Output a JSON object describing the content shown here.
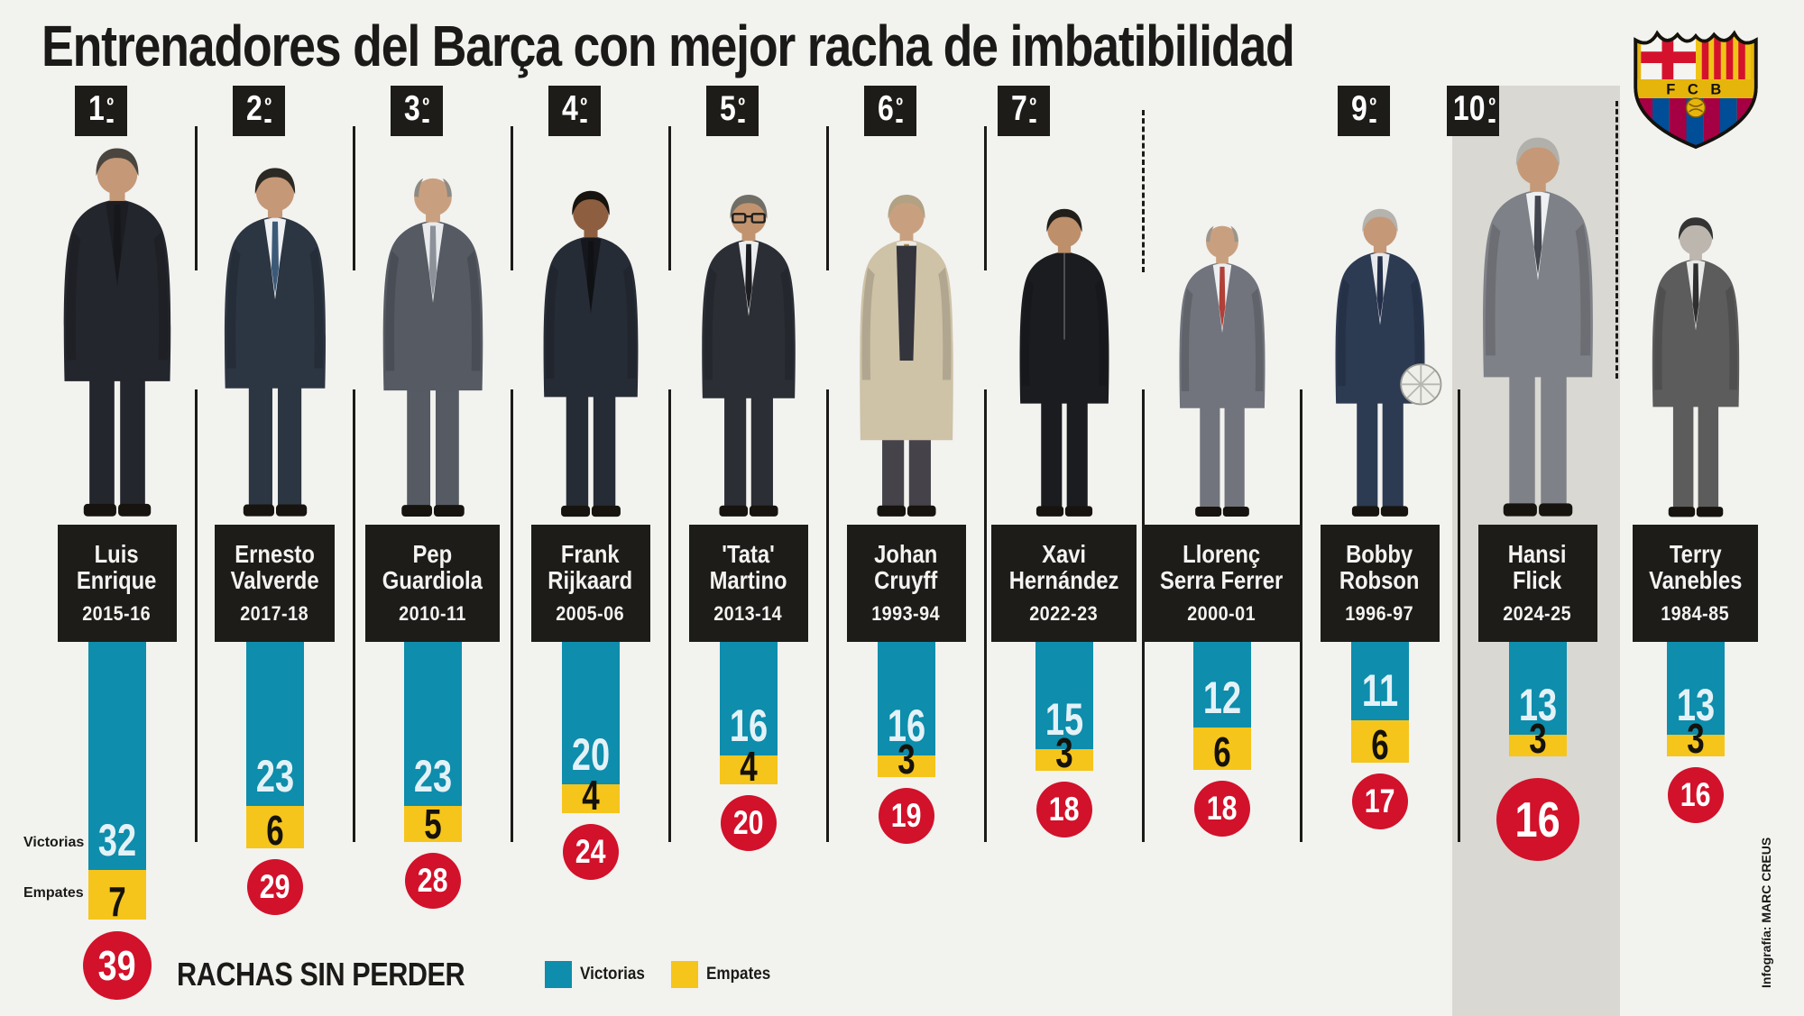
{
  "title": "Entrenadores del Barça con mejor racha de imbatibilidad",
  "crest_text": "F C B",
  "side_labels": {
    "victorias": "Victorias",
    "empates": "Empates"
  },
  "legend": {
    "title": "RACHAS SIN PERDER",
    "victorias": "Victorias",
    "empates": "Empates"
  },
  "credit": "Infografía: MARC CREUS",
  "colors": {
    "wins": "#0e8dac",
    "draws": "#f5c51b",
    "totals": "#d2112a",
    "background": "#f2f2ef",
    "panel": "#1d1c19",
    "highlight_band": "#d9d8d2",
    "text": "#1b1a18"
  },
  "chart_data": {
    "type": "bar",
    "stacked": true,
    "direction": "top-down",
    "title": "Entrenadores del Barça con mejor racha de imbatibilidad",
    "legend": [
      "Victorias",
      "Empates"
    ],
    "legend_position": "bottom",
    "categories": [
      "Luis Enrique",
      "Ernesto Valverde",
      "Pep Guardiola",
      "Frank Rijkaard",
      "'Tata' Martino",
      "Johan Cruyff",
      "Xavi Hernández",
      "Llorenç Serra Ferrer",
      "Bobby Robson",
      "Hansi Flick",
      "Terry Vanebles"
    ],
    "series": [
      {
        "name": "Victorias",
        "values": [
          32,
          23,
          23,
          20,
          16,
          16,
          15,
          12,
          11,
          13,
          13
        ]
      },
      {
        "name": "Empates",
        "values": [
          7,
          6,
          5,
          4,
          4,
          3,
          3,
          6,
          6,
          3,
          3
        ]
      }
    ],
    "totals": [
      39,
      29,
      28,
      24,
      20,
      19,
      18,
      18,
      17,
      16,
      16
    ],
    "coaches": [
      {
        "rank": "1º",
        "name_lines": [
          "Luis",
          "Enrique"
        ],
        "season": "2015-16",
        "wins": 32,
        "draws": 7,
        "total": 39,
        "emphasis": "first",
        "highlighted": false,
        "figure": {
          "suit": "#23262c",
          "shirt": "#1b1d22",
          "tie": "#16171b",
          "hair": "#4a463f",
          "skin": "#c59877"
        }
      },
      {
        "rank": "2º",
        "name_lines": [
          "Ernesto",
          "Valverde"
        ],
        "season": "2017-18",
        "wins": 23,
        "draws": 6,
        "total": 29,
        "emphasis": "normal",
        "highlighted": false,
        "figure": {
          "suit": "#2c3642",
          "shirt": "#eef0f2",
          "tie": "#3c5a78",
          "hair": "#2c2924",
          "skin": "#c59877"
        }
      },
      {
        "rank": "3º",
        "name_lines": [
          "Pep",
          "Guardiola"
        ],
        "season": "2010-11",
        "wins": 23,
        "draws": 5,
        "total": 28,
        "emphasis": "normal",
        "highlighted": false,
        "figure": {
          "suit": "#555a63",
          "shirt": "#e8eaec",
          "tie": "#8c9099",
          "hair": "#8d8a83",
          "skin": "#c9a07f",
          "bald": true
        }
      },
      {
        "rank": "4º",
        "name_lines": [
          "Frank",
          "Rijkaard"
        ],
        "season": "2005-06",
        "wins": 20,
        "draws": 4,
        "total": 24,
        "emphasis": "normal",
        "highlighted": false,
        "figure": {
          "suit": "#262c36",
          "shirt": "#15171c",
          "tie": "#101114",
          "hair": "#17130e",
          "skin": "#8d5f40"
        }
      },
      {
        "rank": "5º",
        "name_lines": [
          "'Tata'",
          "Martino"
        ],
        "season": "2013-14",
        "wins": 16,
        "draws": 4,
        "total": 20,
        "emphasis": "normal",
        "highlighted": false,
        "figure": {
          "suit": "#2b2e35",
          "shirt": "#ecedef",
          "tie": "#1d1e22",
          "hair": "#716e66",
          "skin": "#c1946f",
          "glasses": true
        }
      },
      {
        "rank": "6º",
        "name_lines": [
          "Johan",
          "Cruyff"
        ],
        "season": "1993-94",
        "wins": 16,
        "draws": 3,
        "total": 19,
        "emphasis": "normal",
        "highlighted": false,
        "figure": {
          "suit": "#cec2a7",
          "shirt": "#eceae2",
          "tie": "#a8884e",
          "hair": "#b3a183",
          "skin": "#c9a07f",
          "scarf": "#33343c",
          "pants": "#45424a",
          "coat": true
        }
      },
      {
        "rank": "7º",
        "name_lines": [
          "Xavi",
          "Hernández"
        ],
        "season": "2022-23",
        "wins": 15,
        "draws": 3,
        "total": 18,
        "emphasis": "normal",
        "highlighted": false,
        "figure": {
          "suit": "#1b1c20",
          "hair": "#221f1a",
          "skin": "#bd8f6b",
          "nozip": true
        }
      },
      {
        "rank": null,
        "name_lines": [
          "Llorenç",
          "Serra Ferrer"
        ],
        "season": "2000-01",
        "wins": 12,
        "draws": 6,
        "total": 18,
        "emphasis": "normal",
        "highlighted": false,
        "figure": {
          "suit": "#71747d",
          "shirt": "#eceef0",
          "tie": "#b04038",
          "hair": "#9b958b",
          "skin": "#c9a07f",
          "bald": true
        }
      },
      {
        "rank": "9º",
        "name_lines": [
          "Bobby",
          "Robson"
        ],
        "season": "1996-97",
        "wins": 11,
        "draws": 6,
        "total": 17,
        "emphasis": "normal",
        "highlighted": false,
        "figure": {
          "suit": "#2c3a52",
          "shirt": "#e8e9ec",
          "tie": "#24304a",
          "hair": "#b5b3ad",
          "skin": "#c59877",
          "ball": true
        }
      },
      {
        "rank": "10º",
        "name_lines": [
          "Hansi",
          "Flick"
        ],
        "season": "2024-25",
        "wins": 13,
        "draws": 3,
        "total": 16,
        "emphasis": "highlight",
        "highlighted": true,
        "figure": {
          "suit": "#7e8187",
          "shirt": "#eef0f2",
          "tie": "#43464e",
          "hair": "#b2b0aa",
          "skin": "#c59877"
        }
      },
      {
        "rank": null,
        "name_lines": [
          "Terry",
          "Vanebles"
        ],
        "season": "1984-85",
        "wins": 13,
        "draws": 3,
        "total": 16,
        "emphasis": "normal",
        "highlighted": false,
        "figure": {
          "suit": "#5c5c5c",
          "shirt": "#e9e9e9",
          "tie": "#2f2f2f",
          "hair": "#343434",
          "skin": "#bcb6ae"
        }
      }
    ],
    "separators": [
      {
        "top": "solid",
        "bottom": "solid"
      },
      {
        "top": "solid",
        "bottom": "solid"
      },
      {
        "top": "solid",
        "bottom": "solid"
      },
      {
        "top": "solid",
        "bottom": "solid"
      },
      {
        "top": "solid",
        "bottom": "solid"
      },
      {
        "top": "solid",
        "bottom": "solid"
      },
      {
        "top": "dashed",
        "bottom": "solid"
      },
      {
        "top": "none",
        "bottom": "solid"
      },
      {
        "top": "none",
        "bottom": "solid"
      },
      {
        "top": "dashed",
        "bottom": "none"
      }
    ]
  }
}
